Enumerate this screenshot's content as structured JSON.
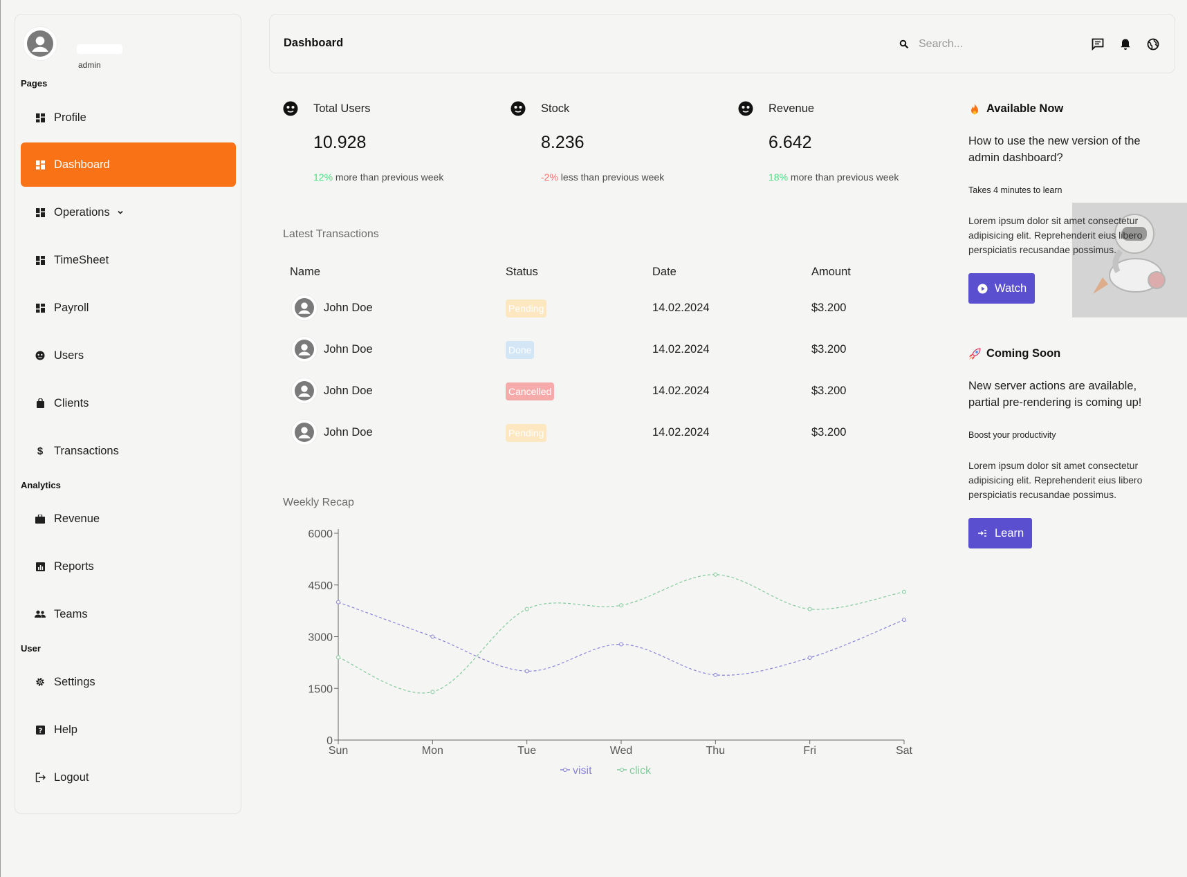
{
  "sidebar": {
    "role": "admin",
    "sections": {
      "pages": "Pages",
      "analytics": "Analytics",
      "user": "User"
    },
    "items": [
      {
        "label": "Profile",
        "icon": "grid-icon"
      },
      {
        "label": "Dashboard",
        "icon": "grid-icon",
        "active": true
      },
      {
        "label": "Operations",
        "icon": "grid-icon",
        "has_submenu": true
      },
      {
        "label": "TimeSheet",
        "icon": "grid-icon"
      },
      {
        "label": "Payroll",
        "icon": "grid-icon"
      },
      {
        "label": "Users",
        "icon": "face-icon"
      },
      {
        "label": "Clients",
        "icon": "bag-icon"
      },
      {
        "label": "Transactions",
        "icon": "dollar-icon"
      },
      {
        "label": "Revenue",
        "icon": "briefcase-icon"
      },
      {
        "label": "Reports",
        "icon": "chart-icon"
      },
      {
        "label": "Teams",
        "icon": "team-icon"
      },
      {
        "label": "Settings",
        "icon": "gear-icon"
      },
      {
        "label": "Help",
        "icon": "help-icon"
      },
      {
        "label": "Logout",
        "icon": "logout-icon"
      }
    ]
  },
  "header": {
    "title": "Dashboard",
    "search_placeholder": "Search..."
  },
  "stats": [
    {
      "label": "Total Users",
      "value": "10.928",
      "change": "12%",
      "change_text": " more than previous week",
      "trend": "up"
    },
    {
      "label": "Stock",
      "value": "8.236",
      "change": "-2%",
      "change_text": " less than previous week",
      "trend": "down"
    },
    {
      "label": "Revenue",
      "value": "6.642",
      "change": "18%",
      "change_text": " more than previous week",
      "trend": "up"
    }
  ],
  "transactions": {
    "heading": "Latest Transactions",
    "columns": [
      "Name",
      "Status",
      "Date",
      "Amount"
    ],
    "rows": [
      {
        "name": "John Doe",
        "status": "Pending",
        "date": "14.02.2024",
        "amount": "$3.200"
      },
      {
        "name": "John Doe",
        "status": "Done",
        "date": "14.02.2024",
        "amount": "$3.200"
      },
      {
        "name": "John Doe",
        "status": "Cancelled",
        "date": "14.02.2024",
        "amount": "$3.200"
      },
      {
        "name": "John Doe",
        "status": "Pending",
        "date": "14.02.2024",
        "amount": "$3.200"
      }
    ]
  },
  "chart_heading": "Weekly Recap",
  "chart_data": {
    "type": "line",
    "x": [
      "Sun",
      "Mon",
      "Tue",
      "Wed",
      "Thu",
      "Fri",
      "Sat"
    ],
    "series": [
      {
        "name": "visit",
        "values": [
          4000,
          3000,
          2000,
          2780,
          1890,
          2390,
          3490
        ],
        "color": "#8884d8"
      },
      {
        "name": "click",
        "values": [
          2400,
          1398,
          3800,
          3908,
          4800,
          3800,
          4300
        ],
        "color": "#82ca9d"
      }
    ],
    "ylim": [
      0,
      6000
    ],
    "yticks": [
      0,
      1500,
      3000,
      4500,
      6000
    ],
    "legend": "bottom-center",
    "grid": false
  },
  "panels": {
    "available": {
      "title": "Available Now",
      "icon": "fire-icon",
      "question": "How to use the new version of the admin dashboard?",
      "small": "Takes 4 minutes to learn",
      "body": "Lorem ipsum dolor sit amet consectetur adipisicing elit. Reprehenderit eius libero perspiciatis recusandae possimus.",
      "button": "Watch",
      "button_icon": "play-icon"
    },
    "coming": {
      "title": "Coming Soon",
      "icon": "rocket-icon",
      "question": "New server actions are available, partial pre-rendering is coming up!",
      "small": "Boost your productivity",
      "body": "Lorem ipsum dolor sit amet consectetur adipisicing elit. Reprehenderit eius libero perspiciatis recusandae possimus.",
      "button": "Learn",
      "button_icon": "login-icon"
    }
  }
}
